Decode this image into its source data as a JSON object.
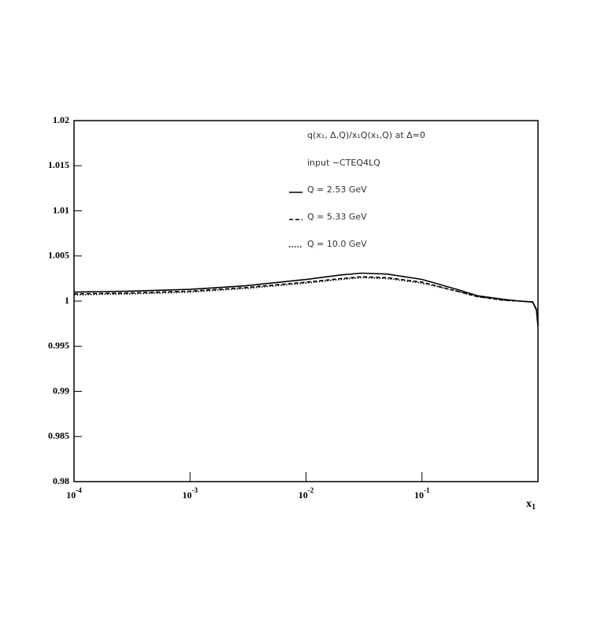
{
  "chart_data": {
    "type": "line",
    "annotations": [
      "q(x₁, Δ,Q)/x₁Q(x₁,Q) at Δ=0",
      "input −CTEQ4LQ"
    ],
    "x_label": "x",
    "x_label_sub": "1",
    "xscale": "log",
    "xlim": [
      0.0001,
      1
    ],
    "xticks": [
      {
        "value": 0.0001,
        "label": "10",
        "sup": "-4"
      },
      {
        "value": 0.001,
        "label": "10",
        "sup": "-3"
      },
      {
        "value": 0.01,
        "label": "10",
        "sup": "-2"
      },
      {
        "value": 0.1,
        "label": "10",
        "sup": "-1"
      }
    ],
    "ylim": [
      0.98,
      1.02
    ],
    "yticks": [
      0.98,
      0.985,
      0.99,
      0.995,
      1,
      1.005,
      1.01,
      1.015,
      1.02
    ],
    "x": [
      0.0001,
      0.0003,
      0.001,
      0.003,
      0.01,
      0.02,
      0.03,
      0.05,
      0.1,
      0.2,
      0.3,
      0.5,
      0.7,
      0.9,
      0.97,
      1
    ],
    "series": [
      {
        "name": "Q = 2.53 GeV",
        "color": "#000000",
        "dash": "solid",
        "values": [
          1.001,
          1.0011,
          1.0013,
          1.0017,
          1.0024,
          1.0029,
          1.0031,
          1.003,
          1.0024,
          1.0013,
          1.0006,
          1.0002,
          1.0,
          0.9999,
          0.999,
          0.9972
        ]
      },
      {
        "name": "Q = 5.33 GeV",
        "color": "#000000",
        "dash": "dashed",
        "values": [
          1.0008,
          1.0009,
          1.0011,
          1.0015,
          1.0021,
          1.0025,
          1.0027,
          1.0026,
          1.0021,
          1.0011,
          1.0005,
          1.0001,
          1.0,
          0.9999,
          0.9991,
          0.9974
        ]
      },
      {
        "name": "Q = 10.0 GeV",
        "color": "#000000",
        "dash": "dotted",
        "values": [
          1.0007,
          1.0008,
          1.001,
          1.0014,
          1.002,
          1.0024,
          1.0026,
          1.0025,
          1.002,
          1.0011,
          1.0005,
          1.0001,
          1.0,
          0.9999,
          0.9991,
          0.9975
        ]
      }
    ]
  }
}
